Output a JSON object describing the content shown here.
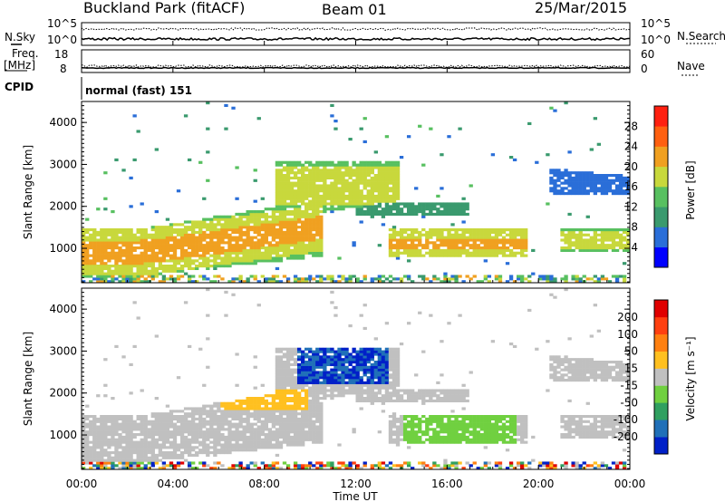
{
  "header": {
    "station": "Buckland Park (fitACF)",
    "beam": "Beam 01",
    "date": "25/Mar/2015"
  },
  "left_labels": {
    "nsky": "N.Sky",
    "freq_top": "Freq.",
    "freq_unit": "[MHz]",
    "cpid": "CPID"
  },
  "right_labels": {
    "nsearch": "N.Search",
    "nave": "Nave"
  },
  "cpid_text": "normal (fast) 151",
  "xaxis": {
    "label": "Time UT",
    "ticks": [
      "00:00",
      "04:00",
      "08:00",
      "12:00",
      "16:00",
      "20:00",
      "00:00"
    ]
  },
  "chart_data": [
    {
      "type": "line",
      "name": "noise",
      "y_left_ticks": [
        "10^5",
        "10^0"
      ],
      "y_right_ticks": [
        "10^5",
        "10^0"
      ],
      "series": [
        {
          "name": "N.Sky"
        },
        {
          "name": "N.Search"
        }
      ]
    },
    {
      "type": "line",
      "name": "freq-nave",
      "y_left_ticks": [
        "18",
        "8"
      ],
      "y_right_ticks": [
        "60",
        "0"
      ],
      "series": [
        {
          "name": "Freq."
        },
        {
          "name": "Nave"
        }
      ]
    },
    {
      "type": "heatmap",
      "name": "power",
      "ylabel": "Slant Range [km]",
      "ylim": [
        180,
        4500
      ],
      "xlim_hours": [
        0,
        24
      ],
      "y_ticks": [
        "4000",
        "3000",
        "2000",
        "1000"
      ],
      "colorbar": {
        "label": "Power [dB]",
        "ticks": [
          "28",
          "24",
          "20",
          "16",
          "12",
          "8",
          "4"
        ],
        "colors": [
          "#0000ff",
          "#2a6ed8",
          "#3a9a6e",
          "#58c060",
          "#c8d83c",
          "#f0a020",
          "#ff6010",
          "#ff2010"
        ]
      }
    },
    {
      "type": "heatmap",
      "name": "velocity",
      "ylabel": "Slant Range [km]",
      "ylim": [
        180,
        4500
      ],
      "xlim_hours": [
        0,
        24
      ],
      "y_ticks": [
        "4000",
        "3000",
        "2000",
        "1000"
      ],
      "colorbar": {
        "label": "Velocity [m s⁻¹]",
        "ticks": [
          "200",
          "100",
          "50",
          "15",
          "-15",
          "-50",
          "-100",
          "-200"
        ],
        "colors": [
          "#0020c8",
          "#2070b8",
          "#30a060",
          "#70d040",
          "#c0c0c0",
          "#ffc020",
          "#ff8010",
          "#ff4010",
          "#e00000"
        ]
      }
    }
  ]
}
